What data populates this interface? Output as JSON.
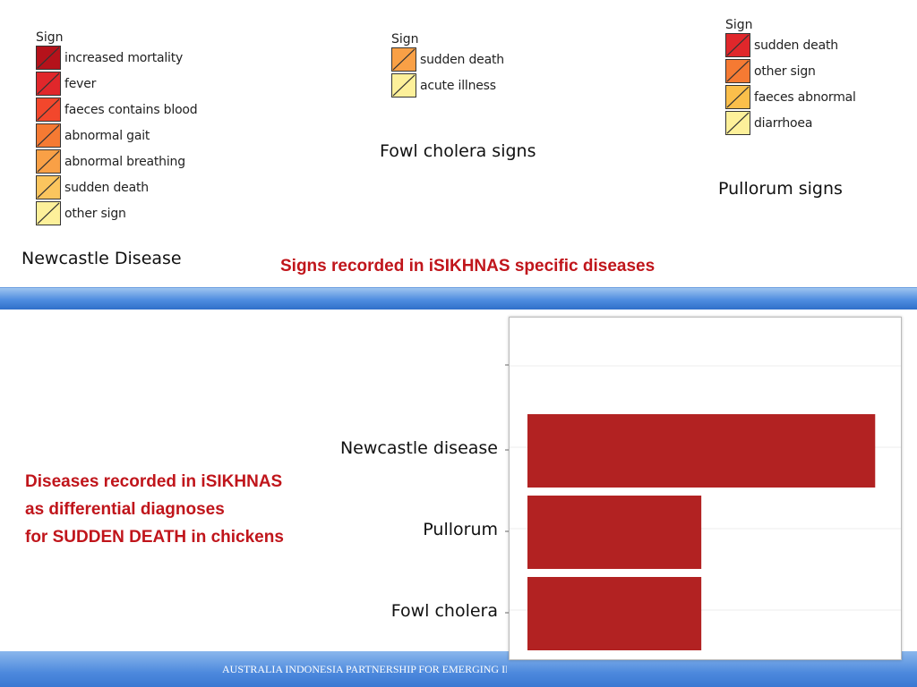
{
  "legends": {
    "newcastle": {
      "title": "Sign",
      "items": [
        {
          "label": "increased mortality",
          "color": "#b5121b"
        },
        {
          "label": "fever",
          "color": "#e0272b"
        },
        {
          "label": "faeces contains blood",
          "color": "#f2472c"
        },
        {
          "label": "abnormal gait",
          "color": "#f57a33"
        },
        {
          "label": "abnormal breathing",
          "color": "#f9a046"
        },
        {
          "label": "sudden death",
          "color": "#fbc55e"
        },
        {
          "label": "other sign",
          "color": "#fdf09a"
        }
      ],
      "caption": "Newcastle Disease"
    },
    "fowl_cholera": {
      "title": "Sign",
      "items": [
        {
          "label": "sudden death",
          "color": "#f9a046"
        },
        {
          "label": "acute illness",
          "color": "#fdf09a"
        }
      ],
      "caption": "Fowl cholera signs"
    },
    "pullorum": {
      "title": "Sign",
      "items": [
        {
          "label": "sudden death",
          "color": "#e0272b"
        },
        {
          "label": "other sign",
          "color": "#f57a33"
        },
        {
          "label": "faeces abnormal",
          "color": "#fbbf4b"
        },
        {
          "label": "diarrhoea",
          "color": "#fdf09a"
        }
      ],
      "caption": "Pullorum signs"
    }
  },
  "headings": {
    "signs_title": "Signs recorded in iSIKHNAS specific diseases",
    "diseases_line1": "Diseases recorded in iSIKHNAS",
    "diseases_line2": "as differential diagnoses",
    "diseases_line3": "for SUDDEN DEATH in chickens"
  },
  "footer": {
    "text": "AUSTRALIA INDONESIA PARTNERSHIP FOR EMERGING INFECTIOUS DISEASES"
  },
  "colors": {
    "bar": "#b22222",
    "heading_red": "#c0151b"
  },
  "chart_data": {
    "type": "bar",
    "orientation": "horizontal",
    "categories": [
      "Newcastle disease",
      "Pullorum",
      "Fowl cholera"
    ],
    "values": [
      2,
      1,
      1
    ],
    "xlim": [
      0,
      2.05
    ],
    "title": "",
    "xlabel": "",
    "ylabel": "",
    "grid": true
  }
}
